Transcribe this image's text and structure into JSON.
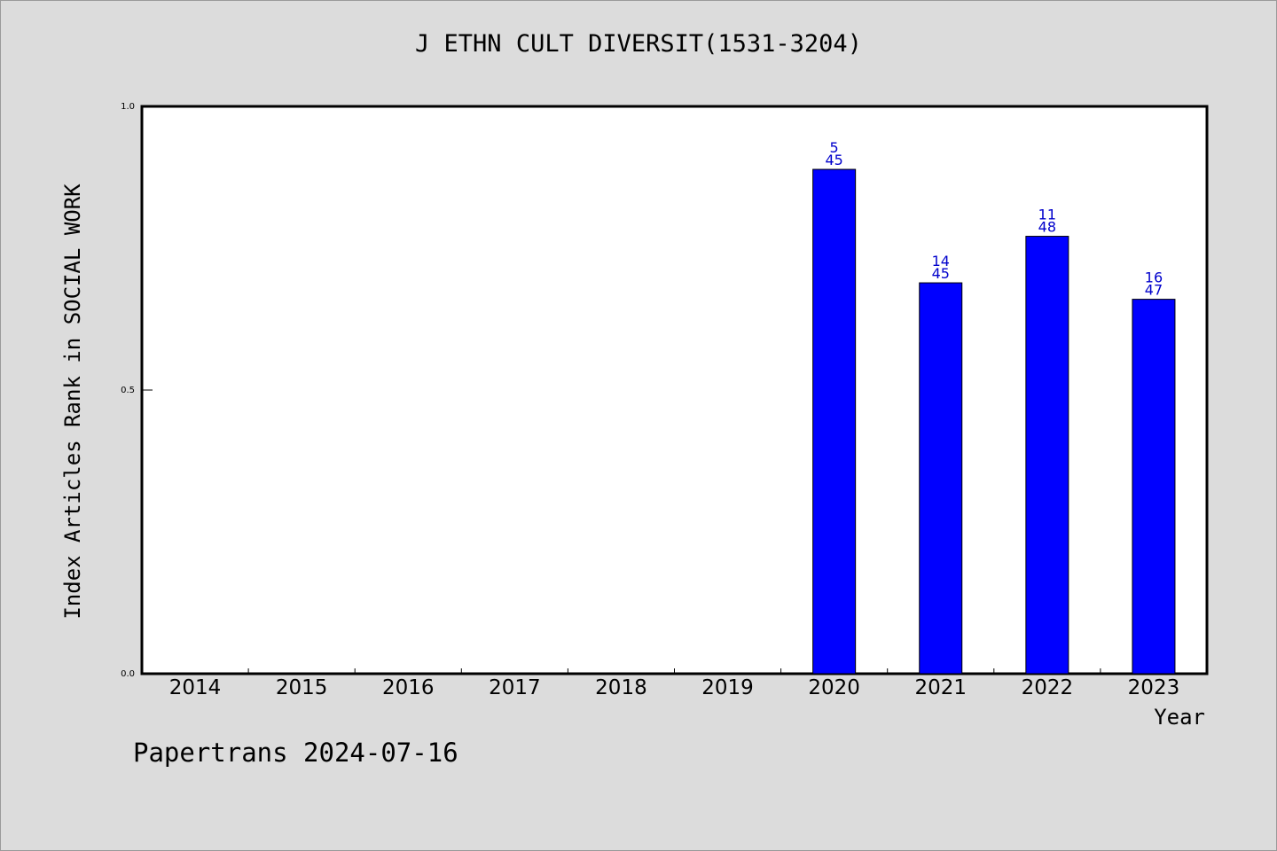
{
  "chart_data": {
    "type": "bar",
    "title": "J ETHN CULT DIVERSIT(1531-3204)",
    "xlabel": "Year",
    "ylabel": "Index Articles Rank in SOCIAL WORK",
    "ylim": [
      0,
      1
    ],
    "yticks": [
      "0.0",
      "0.5",
      "1.0"
    ],
    "categories": [
      "2014",
      "2015",
      "2016",
      "2017",
      "2018",
      "2019",
      "2020",
      "2021",
      "2022",
      "2023"
    ],
    "values": [
      null,
      null,
      null,
      null,
      null,
      null,
      0.889,
      0.689,
      0.771,
      0.66
    ],
    "bar_labels": [
      null,
      null,
      null,
      null,
      null,
      null,
      {
        "rank": "5",
        "total": "45"
      },
      {
        "rank": "14",
        "total": "45"
      },
      {
        "rank": "11",
        "total": "48"
      },
      {
        "rank": "16",
        "total": "47"
      }
    ],
    "grid": false,
    "bar_color": "#0000ff",
    "label_color": "#0000cc"
  },
  "footer": {
    "watermark": "Papertrans 2024-07-16"
  }
}
